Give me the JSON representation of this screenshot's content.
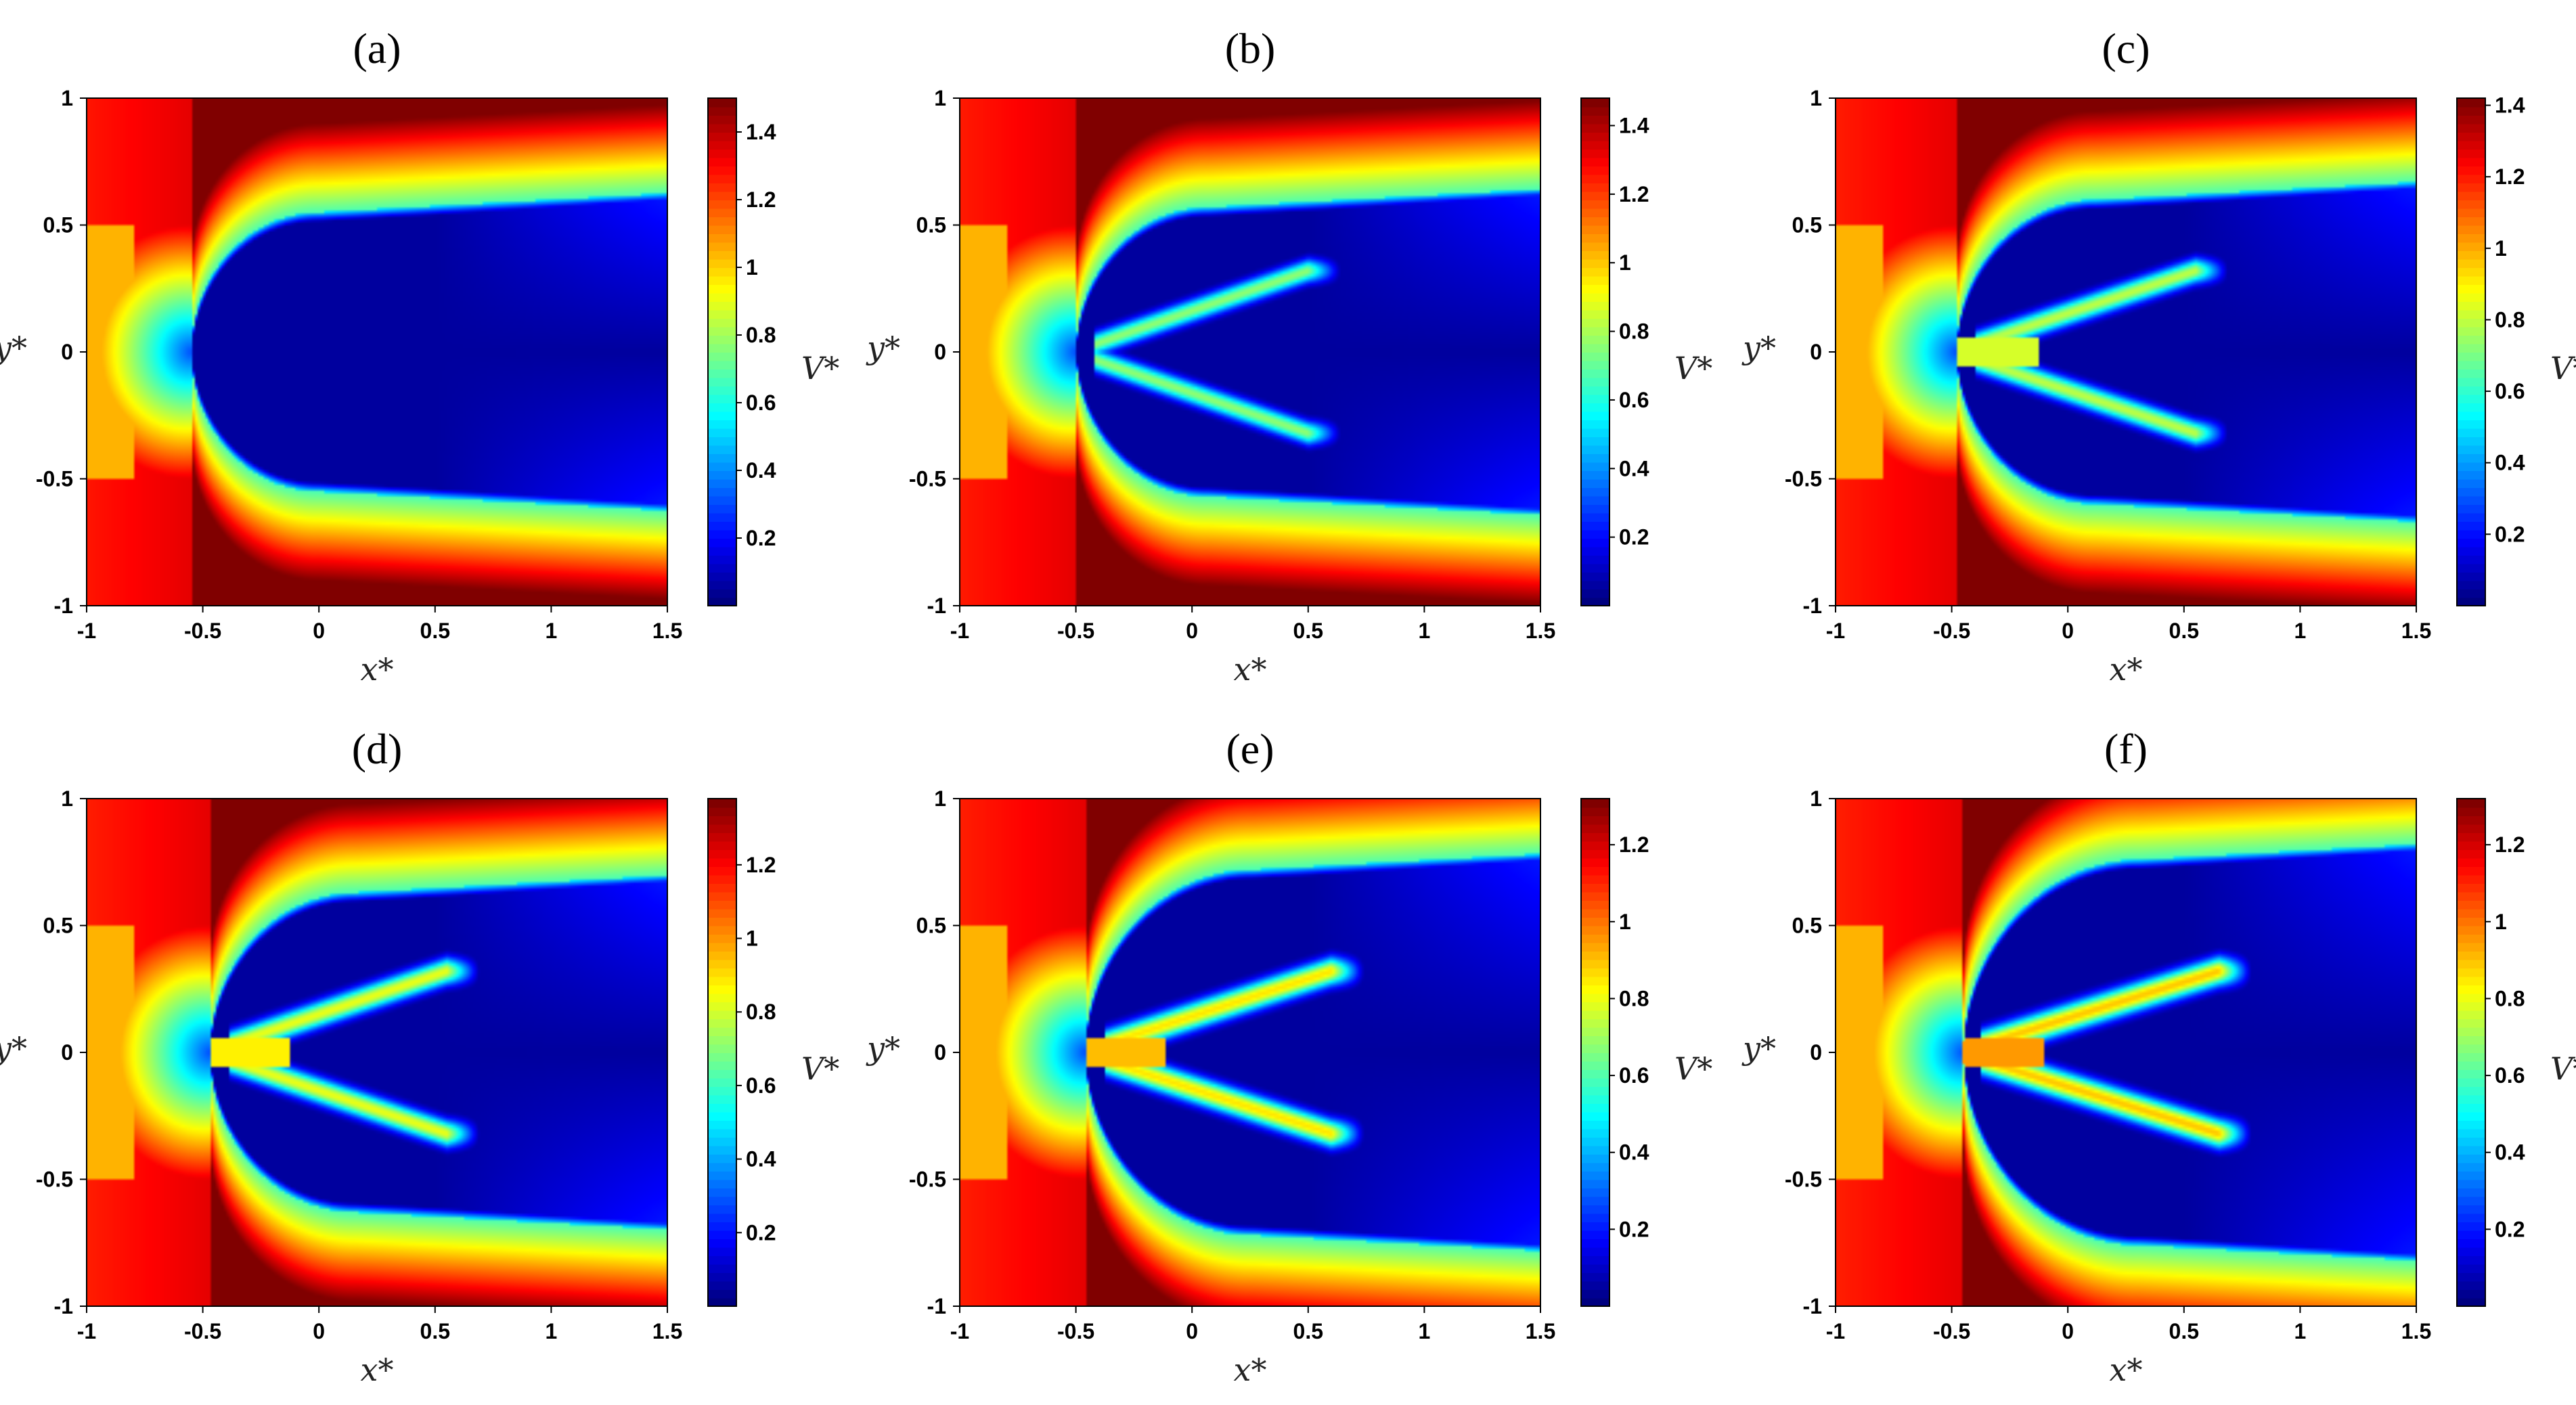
{
  "chart_data": [
    {
      "type": "heatmap",
      "title": "(a)",
      "xlabel": "x*",
      "ylabel": "y*",
      "colorbar_label": "V*",
      "xlim": [
        -1,
        1.5
      ],
      "ylim": [
        -1,
        1
      ],
      "x_ticks": [
        "-1",
        "-0.5",
        "0",
        "0.5",
        "1",
        "1.5"
      ],
      "y_ticks": [
        "-1",
        "-0.5",
        "0",
        "0.5",
        "1"
      ],
      "colorbar_range": [
        0,
        1.5
      ],
      "colorbar_ticks": [
        "0.2",
        "0.4",
        "0.6",
        "0.8",
        "1",
        "1.2",
        "1.4"
      ],
      "colormap": "jet",
      "notes": {
        "cavity_front_x": -0.55,
        "cavity_halfwidth": 0.55,
        "jet_strength": 0,
        "jet_end_x": 0.5
      }
    },
    {
      "type": "heatmap",
      "title": "(b)",
      "xlabel": "x*",
      "ylabel": "y*",
      "colorbar_label": "V*",
      "xlim": [
        -1,
        1.5
      ],
      "ylim": [
        -1,
        1
      ],
      "x_ticks": [
        "-1",
        "-0.5",
        "0",
        "0.5",
        "1",
        "1.5"
      ],
      "y_ticks": [
        "-1",
        "-0.5",
        "0",
        "0.5",
        "1"
      ],
      "colorbar_range": [
        0,
        1.48
      ],
      "colorbar_ticks": [
        "0.2",
        "0.4",
        "0.6",
        "0.8",
        "1",
        "1.2",
        "1.4"
      ],
      "colormap": "jet",
      "notes": {
        "cavity_front_x": -0.5,
        "cavity_halfwidth": 0.57,
        "jet_strength": 0.55,
        "jet_end_x": 0.5
      }
    },
    {
      "type": "heatmap",
      "title": "(c)",
      "xlabel": "x*",
      "ylabel": "y*",
      "colorbar_label": "V*",
      "xlim": [
        -1,
        1.5
      ],
      "ylim": [
        -1,
        1
      ],
      "x_ticks": [
        "-1",
        "-0.5",
        "0",
        "0.5",
        "1",
        "1.5"
      ],
      "y_ticks": [
        "-1",
        "-0.5",
        "0",
        "0.5",
        "1"
      ],
      "colorbar_range": [
        0,
        1.42
      ],
      "colorbar_ticks": [
        "0.2",
        "0.4",
        "0.6",
        "0.8",
        "1",
        "1.2",
        "1.4"
      ],
      "colormap": "jet",
      "notes": {
        "cavity_front_x": -0.48,
        "cavity_halfwidth": 0.6,
        "jet_strength": 0.7,
        "jet_end_x": 0.55
      }
    },
    {
      "type": "heatmap",
      "title": "(d)",
      "xlabel": "x*",
      "ylabel": "y*",
      "colorbar_label": "V*",
      "xlim": [
        -1,
        1.5
      ],
      "ylim": [
        -1,
        1
      ],
      "x_ticks": [
        "-1",
        "-0.5",
        "0",
        "0.5",
        "1",
        "1.5"
      ],
      "y_ticks": [
        "-1",
        "-0.5",
        "0",
        "0.5",
        "1"
      ],
      "colorbar_range": [
        0,
        1.38
      ],
      "colorbar_ticks": [
        "0.2",
        "0.4",
        "0.6",
        "0.8",
        "1",
        "1.2"
      ],
      "colormap": "jet",
      "notes": {
        "cavity_front_x": -0.47,
        "cavity_halfwidth": 0.63,
        "jet_strength": 0.85,
        "jet_end_x": 0.55
      }
    },
    {
      "type": "heatmap",
      "title": "(e)",
      "xlabel": "x*",
      "ylabel": "y*",
      "colorbar_label": "V*",
      "xlim": [
        -1,
        1.5
      ],
      "ylim": [
        -1,
        1
      ],
      "x_ticks": [
        "-1",
        "-0.5",
        "0",
        "0.5",
        "1",
        "1.5"
      ],
      "y_ticks": [
        "-1",
        "-0.5",
        "0",
        "0.5",
        "1"
      ],
      "colorbar_range": [
        0,
        1.32
      ],
      "colorbar_ticks": [
        "0.2",
        "0.4",
        "0.6",
        "0.8",
        "1",
        "1.2"
      ],
      "colormap": "jet",
      "notes": {
        "cavity_front_x": -0.46,
        "cavity_halfwidth": 0.72,
        "jet_strength": 1.0,
        "jet_end_x": 0.6
      }
    },
    {
      "type": "heatmap",
      "title": "(f)",
      "xlabel": "x*",
      "ylabel": "y*",
      "colorbar_label": "V*",
      "xlim": [
        -1,
        1.5
      ],
      "ylim": [
        -1,
        1
      ],
      "x_ticks": [
        "-1",
        "-0.5",
        "0",
        "0.5",
        "1",
        "1.5"
      ],
      "y_ticks": [
        "-1",
        "-0.5",
        "0",
        "0.5",
        "1"
      ],
      "colorbar_range": [
        0,
        1.32
      ],
      "colorbar_ticks": [
        "0.2",
        "0.4",
        "0.6",
        "0.8",
        "1",
        "1.2"
      ],
      "colormap": "jet",
      "notes": {
        "cavity_front_x": -0.45,
        "cavity_halfwidth": 0.76,
        "jet_strength": 1.1,
        "jet_end_x": 0.65
      }
    }
  ]
}
